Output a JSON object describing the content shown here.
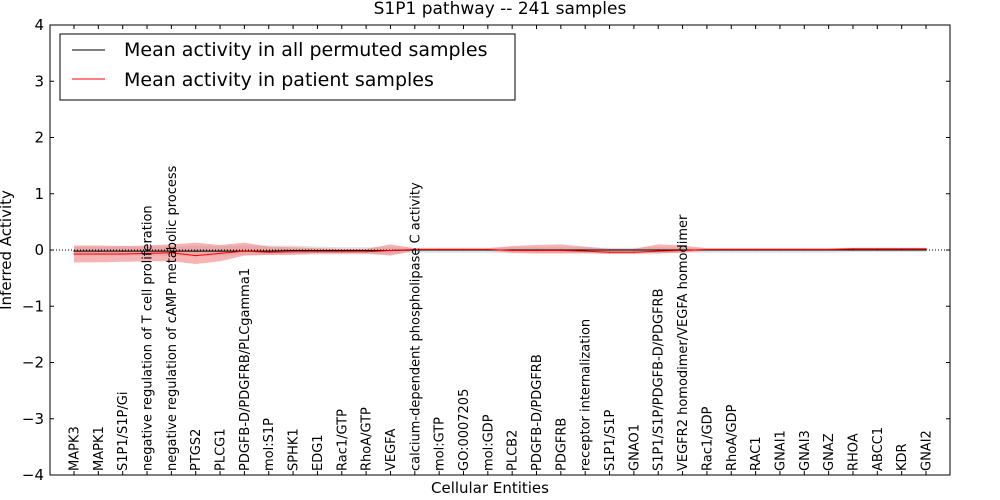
{
  "chart_data": {
    "type": "line",
    "title": "S1P1 pathway -- 241 samples",
    "xlabel": "Cellular Entities",
    "ylabel": "Inferred Activity",
    "ylim": [
      -4,
      4
    ],
    "yticks": [
      -4,
      -3,
      -2,
      -1,
      0,
      1,
      2,
      3,
      4
    ],
    "ytick_labels": [
      "−4",
      "−3",
      "−2",
      "−1",
      "0",
      "1",
      "2",
      "3",
      "4"
    ],
    "legend_position": "top-left",
    "categories": [
      "MAPK3",
      "MAPK1",
      "S1P1/S1P/Gi",
      "negative regulation of T cell proliferation",
      "negative regulation of cAMP metabolic process",
      "PTGS2",
      "PLCG1",
      "PDGFB-D/PDGFRB/PLCgamma1",
      "mol:S1P",
      "SPHK1",
      "EDG1",
      "Rac1/GTP",
      "RhoA/GTP",
      "VEGFA",
      "calcium-dependent phospholipase C activity",
      "mol:GTP",
      "GO:0007205",
      "mol:GDP",
      "PLCB2",
      "PDGFB-D/PDGFRB",
      "PDGFRB",
      "receptor internalization",
      "S1P1/S1P",
      "GNAO1",
      "S1P1/S1P/PDGFB-D/PDGFRB",
      "VEGFR2 homodimer/VEGFA homodimer",
      "Rac1/GDP",
      "RhoA/GDP",
      "RAC1",
      "GNAI1",
      "GNAI3",
      "GNAZ",
      "RHOA",
      "ABCC1",
      "KDR",
      "GNAI2"
    ],
    "series": [
      {
        "name": "Mean activity in all permuted samples",
        "color": "#000000",
        "values": [
          -0.02,
          -0.02,
          -0.02,
          -0.02,
          -0.02,
          -0.02,
          -0.02,
          -0.02,
          -0.02,
          -0.01,
          -0.01,
          -0.01,
          -0.01,
          -0.01,
          0.0,
          0.0,
          0.0,
          0.0,
          0.0,
          0.0,
          0.0,
          0.0,
          0.0,
          0.0,
          0.0,
          0.0,
          0.0,
          0.0,
          0.0,
          0.0,
          0.0,
          0.0,
          0.0,
          0.0,
          0.0,
          0.0
        ],
        "band_lower": [
          -0.1,
          -0.1,
          -0.1,
          -0.1,
          -0.1,
          -0.11,
          -0.1,
          -0.09,
          -0.09,
          -0.09,
          -0.08,
          -0.08,
          -0.08,
          -0.07,
          -0.05,
          -0.05,
          -0.05,
          -0.05,
          -0.06,
          -0.06,
          -0.06,
          -0.06,
          -0.06,
          -0.05,
          -0.06,
          -0.05,
          -0.05,
          -0.05,
          -0.05,
          -0.05,
          -0.05,
          -0.05,
          -0.04,
          -0.04,
          -0.04,
          -0.04
        ],
        "band_upper": [
          0.06,
          0.06,
          0.06,
          0.06,
          0.06,
          0.08,
          0.07,
          0.08,
          0.08,
          0.08,
          0.06,
          0.05,
          0.05,
          0.05,
          0.04,
          0.04,
          0.04,
          0.04,
          0.05,
          0.05,
          0.05,
          0.05,
          0.04,
          0.04,
          0.05,
          0.04,
          0.03,
          0.03,
          0.03,
          0.03,
          0.03,
          0.03,
          0.03,
          0.03,
          0.03,
          0.03
        ],
        "band_color": "#d9d9d9"
      },
      {
        "name": "Mean activity in patient samples",
        "color": "#ff0000",
        "values": [
          -0.07,
          -0.07,
          -0.07,
          -0.06,
          -0.05,
          -0.1,
          -0.06,
          -0.02,
          -0.04,
          -0.03,
          -0.03,
          -0.03,
          -0.03,
          -0.01,
          0.01,
          0.01,
          0.01,
          0.01,
          -0.01,
          -0.01,
          -0.01,
          -0.02,
          -0.04,
          -0.04,
          -0.02,
          -0.01,
          0.01,
          0.01,
          0.01,
          0.01,
          0.01,
          0.01,
          0.02,
          0.02,
          0.02,
          0.02
        ],
        "band_lower": [
          -0.22,
          -0.22,
          -0.21,
          -0.2,
          -0.2,
          -0.25,
          -0.2,
          -0.1,
          -0.09,
          -0.08,
          -0.06,
          -0.06,
          -0.06,
          -0.1,
          -0.01,
          -0.01,
          -0.01,
          -0.01,
          -0.05,
          -0.06,
          -0.06,
          -0.06,
          -0.07,
          -0.07,
          -0.06,
          -0.05,
          -0.01,
          -0.01,
          -0.01,
          -0.01,
          -0.01,
          -0.01,
          0.0,
          0.0,
          0.0,
          0.0
        ],
        "band_upper": [
          0.08,
          0.08,
          0.07,
          0.08,
          0.1,
          0.13,
          0.09,
          0.13,
          0.06,
          0.05,
          0.03,
          0.02,
          0.02,
          0.1,
          0.03,
          0.03,
          0.03,
          0.03,
          0.07,
          0.09,
          0.1,
          0.06,
          0.02,
          0.02,
          0.1,
          0.08,
          0.03,
          0.03,
          0.03,
          0.03,
          0.03,
          0.03,
          0.04,
          0.04,
          0.04,
          0.04
        ],
        "band_color": "#f08080"
      }
    ]
  }
}
